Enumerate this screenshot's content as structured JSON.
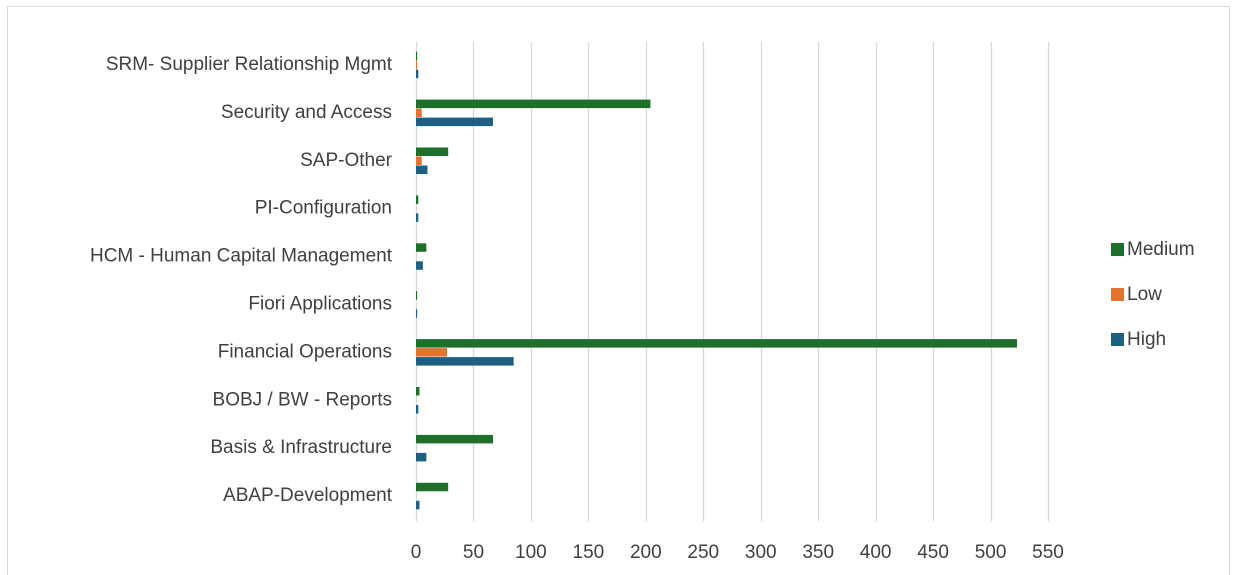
{
  "chart_data": {
    "type": "bar",
    "orientation": "horizontal",
    "title": "",
    "xlabel": "",
    "ylabel": "",
    "categories": [
      "SRM- Supplier Relationship Mgmt",
      "Security and Access",
      "SAP-Other",
      "PI-Configuration",
      "HCM - Human Capital Management",
      "Fiori Applications",
      "Financial Operations",
      "BOBJ / BW - Reports",
      "Basis & Infrastructure",
      "ABAP-Development"
    ],
    "series": [
      {
        "name": "Medium",
        "color": "#1e6f2b",
        "values": [
          1,
          204,
          28,
          2,
          9,
          1,
          523,
          3,
          67,
          28
        ]
      },
      {
        "name": "Low",
        "color": "#e3742f",
        "values": [
          1,
          5,
          5,
          0,
          0,
          0,
          27,
          0,
          0,
          0
        ]
      },
      {
        "name": "High",
        "color": "#1f5f82",
        "values": [
          2,
          67,
          10,
          2,
          6,
          1,
          85,
          2,
          9,
          3
        ]
      }
    ],
    "xlim": [
      0,
      550
    ],
    "x_ticks": [
      0,
      50,
      100,
      150,
      200,
      250,
      300,
      350,
      400,
      450,
      500,
      550
    ],
    "grid": "vertical",
    "legend_position": "right"
  }
}
